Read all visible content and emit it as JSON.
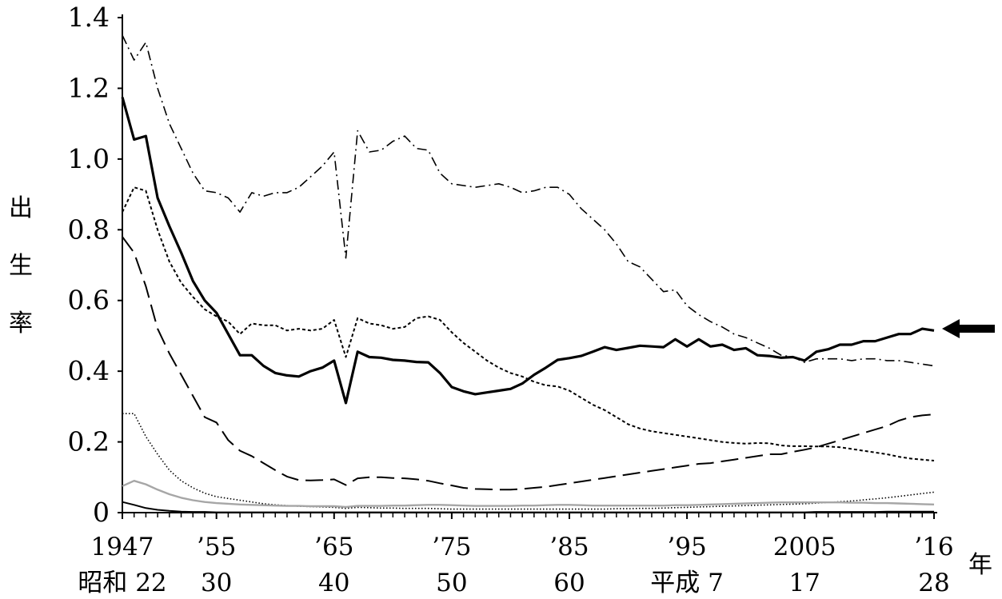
{
  "chart_data": {
    "type": "line",
    "title": "",
    "ylabel": "出生率",
    "xlabel": "年",
    "ylim": [
      0,
      1.4
    ],
    "xlim": [
      1947,
      2016
    ],
    "yticks": [
      "0",
      "0.2",
      "0.4",
      "0.6",
      "0.8",
      "1.0",
      "1.2",
      "1.4"
    ],
    "xticks": [
      {
        "x": 1947,
        "western": "1947",
        "era": "昭和 22"
      },
      {
        "x": 1955,
        "western": "’55",
        "era": "30"
      },
      {
        "x": 1965,
        "western": "’65",
        "era": "40"
      },
      {
        "x": 1975,
        "western": "’75",
        "era": "50"
      },
      {
        "x": 1985,
        "western": "’85",
        "era": "60"
      },
      {
        "x": 1995,
        "western": "’95",
        "era": "平成 7"
      },
      {
        "x": 2005,
        "western": "2005",
        "era": "17"
      },
      {
        "x": 2016,
        "western": "’16",
        "era": "28"
      }
    ],
    "series": [
      {
        "style": "dashdot",
        "color": "#000000",
        "x": [
          1947,
          1948,
          1949,
          1950,
          1951,
          1952,
          1953,
          1954,
          1955,
          1956,
          1957,
          1958,
          1959,
          1960,
          1961,
          1962,
          1963,
          1964,
          1965,
          1966,
          1967,
          1968,
          1969,
          1970,
          1971,
          1972,
          1973,
          1974,
          1975,
          1976,
          1977,
          1978,
          1979,
          1980,
          1981,
          1982,
          1983,
          1984,
          1985,
          1986,
          1987,
          1988,
          1989,
          1990,
          1991,
          1992,
          1993,
          1994,
          1995,
          1996,
          1997,
          1998,
          1999,
          2000,
          2001,
          2002,
          2003,
          2004,
          2005,
          2006,
          2007,
          2008,
          2009,
          2010,
          2011,
          2012,
          2013,
          2014,
          2015,
          2016
        ],
        "values": [
          1.35,
          1.28,
          1.33,
          1.2,
          1.1,
          1.03,
          0.96,
          0.91,
          0.905,
          0.89,
          0.85,
          0.905,
          0.895,
          0.905,
          0.905,
          0.92,
          0.95,
          0.98,
          1.02,
          0.72,
          1.08,
          1.02,
          1.025,
          1.05,
          1.065,
          1.03,
          1.025,
          0.96,
          0.93,
          0.925,
          0.92,
          0.925,
          0.93,
          0.92,
          0.905,
          0.91,
          0.92,
          0.92,
          0.9,
          0.86,
          0.83,
          0.8,
          0.76,
          0.71,
          0.695,
          0.66,
          0.625,
          0.63,
          0.585,
          0.56,
          0.54,
          0.525,
          0.505,
          0.495,
          0.48,
          0.465,
          0.445,
          0.44,
          0.425,
          0.435,
          0.435,
          0.435,
          0.43,
          0.435,
          0.435,
          0.43,
          0.43,
          0.425,
          0.42,
          0.415
        ]
      },
      {
        "style": "solid-bold",
        "color": "#000000",
        "x": [
          1947,
          1948,
          1949,
          1950,
          1951,
          1952,
          1953,
          1954,
          1955,
          1956,
          1957,
          1958,
          1959,
          1960,
          1961,
          1962,
          1963,
          1964,
          1965,
          1966,
          1967,
          1968,
          1969,
          1970,
          1971,
          1972,
          1973,
          1974,
          1975,
          1976,
          1977,
          1978,
          1979,
          1980,
          1981,
          1982,
          1983,
          1984,
          1985,
          1986,
          1987,
          1988,
          1989,
          1990,
          1991,
          1992,
          1993,
          1994,
          1995,
          1996,
          1997,
          1998,
          1999,
          2000,
          2001,
          2002,
          2003,
          2004,
          2005,
          2006,
          2007,
          2008,
          2009,
          2010,
          2011,
          2012,
          2013,
          2014,
          2015,
          2016
        ],
        "values": [
          1.175,
          1.055,
          1.065,
          0.89,
          0.81,
          0.735,
          0.655,
          0.6,
          0.565,
          0.505,
          0.445,
          0.445,
          0.415,
          0.395,
          0.388,
          0.385,
          0.4,
          0.41,
          0.43,
          0.31,
          0.455,
          0.44,
          0.438,
          0.432,
          0.43,
          0.426,
          0.425,
          0.395,
          0.355,
          0.343,
          0.335,
          0.34,
          0.345,
          0.35,
          0.365,
          0.39,
          0.41,
          0.432,
          0.437,
          0.443,
          0.455,
          0.468,
          0.46,
          0.466,
          0.472,
          0.47,
          0.468,
          0.49,
          0.47,
          0.49,
          0.47,
          0.475,
          0.46,
          0.465,
          0.445,
          0.443,
          0.438,
          0.44,
          0.43,
          0.455,
          0.462,
          0.475,
          0.475,
          0.485,
          0.485,
          0.495,
          0.505,
          0.505,
          0.52,
          0.515
        ]
      },
      {
        "style": "dotted-coarse",
        "color": "#000000",
        "x": [
          1947,
          1948,
          1949,
          1950,
          1951,
          1952,
          1953,
          1954,
          1955,
          1956,
          1957,
          1958,
          1959,
          1960,
          1961,
          1962,
          1963,
          1964,
          1965,
          1966,
          1967,
          1968,
          1969,
          1970,
          1971,
          1972,
          1973,
          1974,
          1975,
          1976,
          1977,
          1978,
          1979,
          1980,
          1981,
          1982,
          1983,
          1984,
          1985,
          1986,
          1987,
          1988,
          1989,
          1990,
          1991,
          1992,
          1993,
          1994,
          1995,
          1996,
          1997,
          1998,
          1999,
          2000,
          2001,
          2002,
          2003,
          2004,
          2005,
          2006,
          2007,
          2008,
          2009,
          2010,
          2011,
          2012,
          2013,
          2014,
          2015,
          2016
        ],
        "values": [
          0.85,
          0.92,
          0.91,
          0.8,
          0.71,
          0.65,
          0.61,
          0.575,
          0.555,
          0.54,
          0.505,
          0.535,
          0.53,
          0.53,
          0.515,
          0.52,
          0.515,
          0.52,
          0.545,
          0.44,
          0.55,
          0.535,
          0.53,
          0.52,
          0.525,
          0.55,
          0.555,
          0.545,
          0.51,
          0.48,
          0.455,
          0.43,
          0.41,
          0.395,
          0.385,
          0.37,
          0.36,
          0.357,
          0.345,
          0.325,
          0.305,
          0.29,
          0.27,
          0.25,
          0.238,
          0.23,
          0.225,
          0.22,
          0.215,
          0.21,
          0.205,
          0.2,
          0.197,
          0.195,
          0.197,
          0.196,
          0.19,
          0.188,
          0.188,
          0.187,
          0.187,
          0.185,
          0.18,
          0.175,
          0.17,
          0.165,
          0.158,
          0.153,
          0.15,
          0.147
        ]
      },
      {
        "style": "longdash",
        "color": "#000000",
        "x": [
          1947,
          1948,
          1949,
          1950,
          1951,
          1952,
          1953,
          1954,
          1955,
          1956,
          1957,
          1958,
          1959,
          1960,
          1961,
          1962,
          1963,
          1964,
          1965,
          1966,
          1967,
          1968,
          1969,
          1970,
          1971,
          1972,
          1973,
          1974,
          1975,
          1976,
          1977,
          1978,
          1979,
          1980,
          1981,
          1982,
          1983,
          1984,
          1985,
          1986,
          1987,
          1988,
          1989,
          1990,
          1991,
          1992,
          1993,
          1994,
          1995,
          1996,
          1997,
          1998,
          1999,
          2000,
          2001,
          2002,
          2003,
          2004,
          2005,
          2006,
          2007,
          2008,
          2009,
          2010,
          2011,
          2012,
          2013,
          2014,
          2015,
          2016
        ],
        "values": [
          0.78,
          0.735,
          0.64,
          0.52,
          0.45,
          0.39,
          0.33,
          0.27,
          0.255,
          0.205,
          0.175,
          0.16,
          0.14,
          0.12,
          0.102,
          0.092,
          0.091,
          0.092,
          0.094,
          0.078,
          0.097,
          0.1,
          0.1,
          0.098,
          0.097,
          0.094,
          0.09,
          0.083,
          0.077,
          0.07,
          0.067,
          0.066,
          0.065,
          0.065,
          0.067,
          0.07,
          0.073,
          0.078,
          0.083,
          0.088,
          0.093,
          0.098,
          0.103,
          0.108,
          0.113,
          0.118,
          0.123,
          0.128,
          0.133,
          0.138,
          0.14,
          0.145,
          0.15,
          0.155,
          0.16,
          0.165,
          0.165,
          0.172,
          0.178,
          0.185,
          0.195,
          0.205,
          0.215,
          0.225,
          0.235,
          0.245,
          0.26,
          0.27,
          0.275,
          0.278
        ]
      },
      {
        "style": "dotted-fine",
        "color": "#000000",
        "x": [
          1947,
          1948,
          1949,
          1950,
          1951,
          1952,
          1953,
          1954,
          1955,
          1956,
          1957,
          1958,
          1959,
          1960,
          1961,
          1962,
          1963,
          1964,
          1965,
          1966,
          1967,
          1968,
          1969,
          1970,
          1971,
          1972,
          1973,
          1974,
          1975,
          1976,
          1977,
          1978,
          1979,
          1980,
          1981,
          1982,
          1983,
          1984,
          1985,
          1986,
          1987,
          1988,
          1989,
          1990,
          1991,
          1992,
          1993,
          1994,
          1995,
          1996,
          1997,
          1998,
          1999,
          2000,
          2001,
          2002,
          2003,
          2004,
          2005,
          2006,
          2007,
          2008,
          2009,
          2010,
          2011,
          2012,
          2013,
          2014,
          2015,
          2016
        ],
        "values": [
          0.28,
          0.28,
          0.215,
          0.165,
          0.12,
          0.09,
          0.07,
          0.055,
          0.045,
          0.04,
          0.035,
          0.03,
          0.025,
          0.022,
          0.02,
          0.018,
          0.017,
          0.016,
          0.015,
          0.012,
          0.015,
          0.014,
          0.013,
          0.013,
          0.012,
          0.012,
          0.012,
          0.011,
          0.01,
          0.01,
          0.01,
          0.01,
          0.01,
          0.01,
          0.01,
          0.01,
          0.01,
          0.01,
          0.01,
          0.01,
          0.01,
          0.01,
          0.011,
          0.011,
          0.012,
          0.012,
          0.013,
          0.014,
          0.015,
          0.016,
          0.017,
          0.018,
          0.019,
          0.02,
          0.021,
          0.022,
          0.023,
          0.024,
          0.025,
          0.027,
          0.029,
          0.031,
          0.033,
          0.036,
          0.039,
          0.042,
          0.046,
          0.05,
          0.054,
          0.058
        ]
      },
      {
        "style": "solid-gray",
        "color": "#a6a6a6",
        "x": [
          1947,
          1948,
          1949,
          1950,
          1951,
          1952,
          1953,
          1954,
          1955,
          1956,
          1957,
          1958,
          1959,
          1960,
          1961,
          1962,
          1963,
          1964,
          1965,
          1966,
          1967,
          1968,
          1969,
          1970,
          1971,
          1972,
          1973,
          1974,
          1975,
          1976,
          1977,
          1978,
          1979,
          1980,
          1981,
          1982,
          1983,
          1984,
          1985,
          1986,
          1987,
          1988,
          1989,
          1990,
          1991,
          1992,
          1993,
          1994,
          1995,
          1996,
          1997,
          1998,
          1999,
          2000,
          2001,
          2002,
          2003,
          2004,
          2005,
          2006,
          2007,
          2008,
          2009,
          2010,
          2011,
          2012,
          2013,
          2014,
          2015,
          2016
        ],
        "values": [
          0.075,
          0.09,
          0.08,
          0.065,
          0.052,
          0.042,
          0.035,
          0.03,
          0.027,
          0.025,
          0.023,
          0.022,
          0.021,
          0.02,
          0.019,
          0.019,
          0.018,
          0.018,
          0.018,
          0.016,
          0.019,
          0.019,
          0.019,
          0.02,
          0.02,
          0.021,
          0.022,
          0.022,
          0.021,
          0.02,
          0.019,
          0.019,
          0.019,
          0.019,
          0.02,
          0.02,
          0.021,
          0.022,
          0.022,
          0.021,
          0.02,
          0.02,
          0.02,
          0.02,
          0.02,
          0.02,
          0.02,
          0.021,
          0.021,
          0.022,
          0.023,
          0.024,
          0.025,
          0.026,
          0.027,
          0.028,
          0.029,
          0.029,
          0.029,
          0.029,
          0.029,
          0.029,
          0.028,
          0.028,
          0.027,
          0.027,
          0.026,
          0.025,
          0.024,
          0.023
        ]
      },
      {
        "style": "solid-thin",
        "color": "#000000",
        "x": [
          1947,
          1948,
          1949,
          1950,
          1951,
          1952,
          1953,
          1954,
          1955,
          1956,
          1957,
          1958,
          1959,
          1960,
          1961,
          1962,
          1963,
          1964,
          1965,
          1966,
          1967,
          1968,
          1969,
          1970,
          1971,
          1972,
          1973,
          1974,
          1975,
          1976,
          1977,
          1978,
          1979,
          1980,
          1981,
          1982,
          1983,
          1984,
          1985,
          1986,
          1987,
          1988,
          1989,
          1990,
          1991,
          1992,
          1993,
          1994,
          1995,
          1996,
          1997,
          1998,
          1999,
          2000,
          2001,
          2002,
          2003,
          2004,
          2005,
          2006,
          2007,
          2008,
          2009,
          2010,
          2011,
          2012,
          2013,
          2014,
          2015,
          2016
        ],
        "values": [
          0.03,
          0.022,
          0.013,
          0.008,
          0.005,
          0.003,
          0.002,
          0.002,
          0.001,
          0.001,
          0.001,
          0.001,
          0.001,
          0.001,
          0.001,
          0.001,
          0.001,
          0.001,
          0.001,
          0.001,
          0.001,
          0.001,
          0.001,
          0.001,
          0.001,
          0.001,
          0.001,
          0.001,
          0.001,
          0.001,
          0.001,
          0.001,
          0.001,
          0.001,
          0.001,
          0.001,
          0.001,
          0.001,
          0.001,
          0.001,
          0.001,
          0.001,
          0.001,
          0.001,
          0.001,
          0.001,
          0.001,
          0.001,
          0.001,
          0.001,
          0.001,
          0.001,
          0.001,
          0.001,
          0.001,
          0.001,
          0.001,
          0.001,
          0.001,
          0.002,
          0.002,
          0.002,
          0.002,
          0.002,
          0.002,
          0.003,
          0.003,
          0.003,
          0.003,
          0.003
        ]
      }
    ]
  }
}
